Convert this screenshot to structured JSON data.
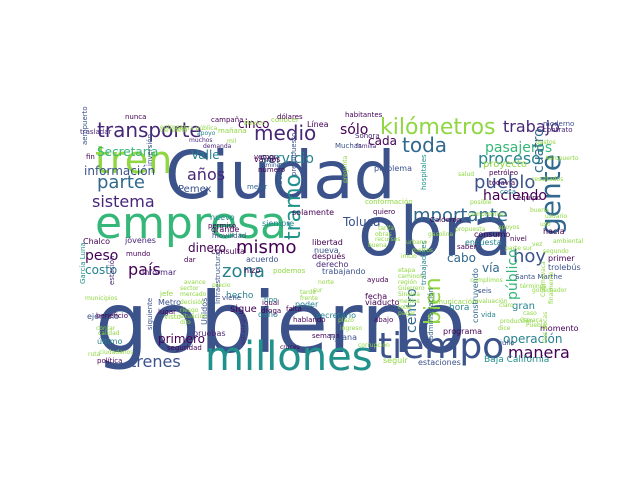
{
  "palette": {
    "navy": "#3b528b",
    "purple": "#482677",
    "darkpurple": "#440154",
    "blue": "#31688e",
    "teal": "#26828e",
    "cyan": "#21918c",
    "green": "#35b779",
    "lime": "#90d743",
    "yellow": "#fde725"
  },
  "words": [
    "gobierno",
    "Ciudad",
    "obra",
    "empresa",
    "millones",
    "tiempo",
    "tren",
    "gente",
    "kilómetros",
    "transporte",
    "medio",
    "sólo",
    "toda",
    "trabajo",
    "parte",
    "importante",
    "pueblo",
    "proceso",
    "sistema",
    "servicio",
    "tramo",
    "país",
    "zona",
    "mismo",
    "bien",
    "manera",
    "trenes",
    "hoy",
    "años",
    "pasajeros",
    "información",
    "Valle",
    "Pemex",
    "Secretaría",
    "cinco",
    "centro",
    "peso",
    "dinero",
    "operación",
    "primero",
    "Toluca",
    "público",
    "haciendo",
    "proyecto",
    "cuatro",
    "cada",
    "costo",
    "cabo",
    "vía",
    "hora",
    "Chalco",
    "Metro",
    "Santa Marthe",
    "Baja California",
    "estaciones",
    "seguir",
    "semana",
    "Tijuana",
    "política",
    "último",
    "ejemplo",
    "libertad",
    "nueva",
    "después",
    "derecho",
    "viaducto",
    "comunicación",
    "consumo",
    "encuesta",
    "nivel",
    "hacia",
    "primer",
    "trolebús",
    "gran",
    "momento",
    "programa",
    "construyendo",
    "fecha",
    "secretario",
    "hablando",
    "poder",
    "sigue",
    "hecho",
    "daño",
    "igual",
    "droga",
    "Unidos",
    "jóvenes",
    "beneficio",
    "dar",
    "consulta",
    "acuerdo",
    "hizo",
    "podemos",
    "Línea",
    "Sonora",
    "Muchas",
    "conocer",
    "dólares",
    "habitantes",
    "campaña",
    "mañana",
    "nunca",
    "trasladar",
    "aeropuerto",
    "fin",
    "mejor",
    "cuenta",
    "presupuesto",
    "solamente",
    "quiero",
    "problema",
    "hospitales",
    "petróleo",
    "todavía",
    "equipo",
    "cosa",
    "moderno",
    "conformación",
    "saber",
    "vamos",
    "falta",
    "abajo",
    "familia",
    "tipo",
    "grande",
    "siempre",
    "movilidad",
    "permiso",
    "mundo",
    "lugar",
    "pruebas",
    "estación",
    "trabajando",
    "ayuda",
    "Calderón",
    "vida",
    "seis",
    "julio",
    "García Luna",
    "siguiente",
    "seguridad",
    "informar",
    "número",
    "inversión",
    "contrato",
    "entrega",
    "visto",
    "vemos",
    "lámina",
    "ir",
    "nuevo",
    "viene",
    "Infraestructura",
    "México",
    "apoyo",
    "mil",
    "muchos",
    "demanda",
    "administración",
    "trabajadores",
    "compromiso",
    "Cuernavaca",
    "Dos Bocas",
    "cruces",
    "estrategia",
    "buena",
    "corrupción",
    "pregunta",
    "posible",
    "salud",
    "claro",
    "resultados",
    "gastos",
    "Aeropuerto",
    "usuario",
    "bueno",
    "ambiental",
    "jefe",
    "parte sur",
    "cumplimos",
    "evaluación",
    "caso",
    "Oaxaca",
    "Puebla",
    "calidad",
    "contar",
    "municipios",
    "ciudadanos",
    "ruta",
    "decisión",
    "avance",
    "sector",
    "mercado",
    "precio",
    "plazo",
    "ingreso",
    "tarifa",
    "obras",
    "recursos",
    "finalmente",
    "vez",
    "segundo",
    "uso",
    "propuesta",
    "gasolina",
    "apoyos",
    "urbano",
    "metros",
    "inicio",
    "términos",
    "gobernador",
    "producción",
    "dice",
    "norte",
    "sur",
    "Guerrero",
    "Sinaloa",
    "región",
    "caminos",
    "etapa",
    "carretera",
    "obra pública",
    "riesgo",
    "situación",
    "dijo",
    "pagar",
    "total",
    "medios",
    "frente",
    "tarde"
  ]
}
